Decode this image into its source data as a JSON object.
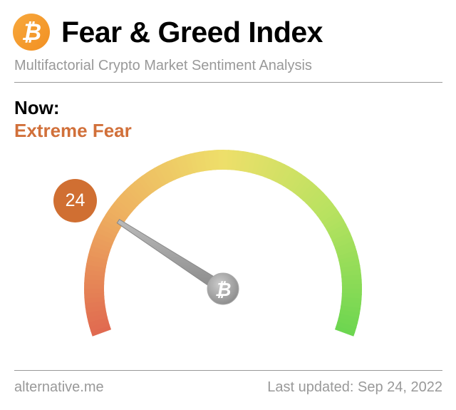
{
  "header": {
    "logo_glyph": "₿",
    "title": "Fear & Greed Index",
    "subtitle": "Multifactorial Crypto Market Sentiment Analysis"
  },
  "now": {
    "label": "Now:",
    "classification": "Extreme Fear",
    "value": "24",
    "value_numeric": 24,
    "badge_color": "#d06f32",
    "classification_color": "#d1703a"
  },
  "gauge": {
    "min": 0,
    "max": 100,
    "colors": [
      "#e06a50",
      "#eeb060",
      "#eedf6a",
      "#b8e260",
      "#6dd650"
    ],
    "hub_glyph": "₿"
  },
  "footer": {
    "source": "alternative.me",
    "updated": "Last updated: Sep 24, 2022"
  }
}
